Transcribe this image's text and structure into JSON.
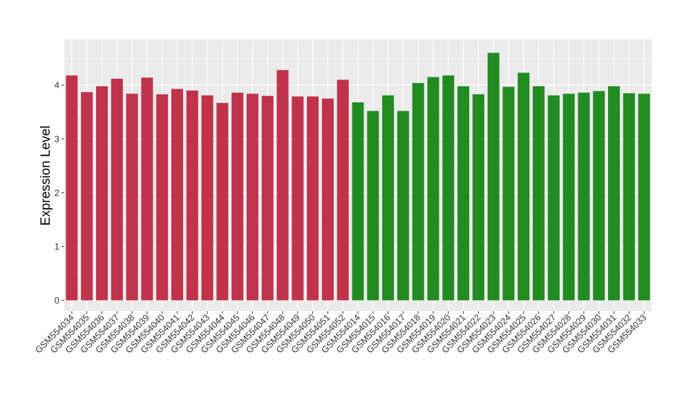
{
  "chart_data": {
    "type": "bar",
    "title": "",
    "xlabel": "",
    "ylabel": "Expression Level",
    "ylim": [
      -0.2,
      4.85
    ],
    "yticks": [
      0,
      1,
      2,
      3,
      4
    ],
    "grid": true,
    "colors": {
      "group_a": "#c0334b",
      "group_b": "#228b22",
      "panel": "#ebebeb",
      "gridline": "#ffffff"
    },
    "groups": [
      {
        "color_key": "group_a",
        "categories": [
          "GSM554034",
          "GSM554035",
          "GSM554036",
          "GSM554037",
          "GSM554038",
          "GSM554039",
          "GSM554040",
          "GSM554041",
          "GSM554042",
          "GSM554043",
          "GSM554044",
          "GSM554045",
          "GSM554046",
          "GSM554047",
          "GSM554048",
          "GSM554049",
          "GSM554050",
          "GSM554051",
          "GSM554052"
        ],
        "values": [
          4.18,
          3.87,
          3.98,
          4.12,
          3.84,
          4.14,
          3.83,
          3.93,
          3.9,
          3.81,
          3.67,
          3.86,
          3.84,
          3.8,
          4.28,
          3.79,
          3.79,
          3.75,
          4.1
        ]
      },
      {
        "color_key": "group_b",
        "categories": [
          "GSM554014",
          "GSM554015",
          "GSM554016",
          "GSM554017",
          "GSM554018",
          "GSM554019",
          "GSM554020",
          "GSM554021",
          "GSM554022",
          "GSM554023",
          "GSM554024",
          "GSM554025",
          "GSM554026",
          "GSM554027",
          "GSM554028",
          "GSM554029",
          "GSM554030",
          "GSM554031",
          "GSM554032",
          "GSM554033"
        ],
        "values": [
          3.68,
          3.52,
          3.81,
          3.52,
          4.04,
          4.15,
          4.18,
          3.98,
          3.83,
          4.6,
          3.97,
          4.23,
          3.98,
          3.81,
          3.84,
          3.86,
          3.89,
          3.98,
          3.85,
          3.84
        ]
      }
    ]
  }
}
